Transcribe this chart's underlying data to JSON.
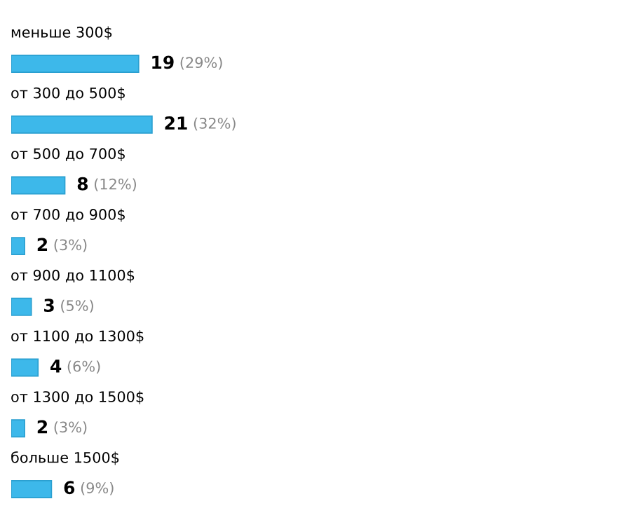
{
  "chart_data": {
    "type": "bar",
    "orientation": "horizontal",
    "categories": [
      "меньше 300$",
      "от 300 до 500$",
      "от 500 до 700$",
      "от 700 до 900$",
      "от 900 до 1100$",
      "от 1100 до 1300$",
      "от 1300 до 1500$",
      "больше 1500$"
    ],
    "values": [
      19,
      21,
      8,
      2,
      3,
      4,
      2,
      6
    ],
    "value_labels": [
      "19 (29%)",
      "21 (32%)",
      "8 (12%)",
      "2 (3%)",
      "3 (5%)",
      "4 (6%)",
      "2 (3%)",
      "6 (9%)"
    ],
    "color": "#3db8ea"
  }
}
